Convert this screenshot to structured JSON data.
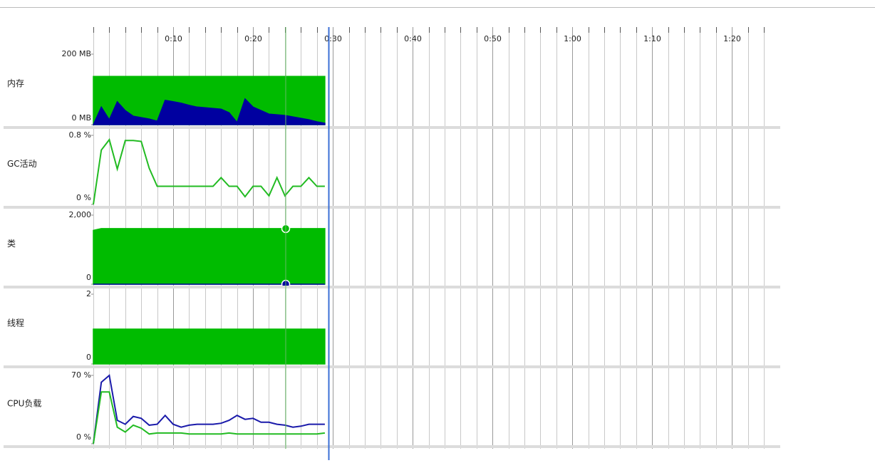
{
  "chart_data": [
    {
      "type": "area",
      "title": "内存",
      "x": [
        0,
        1,
        2,
        3,
        4,
        5,
        6,
        7,
        8,
        9,
        10,
        11,
        12,
        13,
        14,
        15,
        16,
        17,
        18,
        19,
        20,
        21,
        22,
        23,
        24,
        25,
        26,
        27,
        28,
        29
      ],
      "series": [
        {
          "color": "#00bb00",
          "values": [
            137,
            137,
            137,
            137,
            137,
            137,
            137,
            137,
            137,
            137,
            137,
            137,
            137,
            137,
            137,
            137,
            137,
            137,
            137,
            137,
            137,
            137,
            137,
            137,
            137,
            137,
            137,
            137,
            137,
            137
          ]
        },
        {
          "color": "#0000a0",
          "values": [
            0,
            50,
            14,
            65,
            40,
            24,
            20,
            16,
            10,
            69,
            65,
            61,
            55,
            50,
            48,
            46,
            44,
            34,
            6,
            73,
            50,
            40,
            30,
            28,
            26,
            22,
            18,
            14,
            8,
            4
          ]
        }
      ],
      "ylim": [
        0,
        200
      ],
      "yticks": [
        {
          "value": 0,
          "label": "0 MB"
        },
        {
          "value": 200,
          "label": "200 MB"
        }
      ]
    },
    {
      "type": "line",
      "title": "GC活动",
      "x": [
        0,
        1,
        2,
        3,
        4,
        5,
        6,
        7,
        8,
        9,
        10,
        11,
        12,
        13,
        14,
        15,
        16,
        17,
        18,
        19,
        20,
        21,
        22,
        23,
        24,
        25,
        26,
        27,
        28,
        29
      ],
      "series": [
        {
          "color": "#22bb22",
          "values": [
            0,
            0.63,
            0.75,
            0.41,
            0.74,
            0.74,
            0.73,
            0.42,
            0.21,
            0.21,
            0.21,
            0.21,
            0.21,
            0.21,
            0.21,
            0.21,
            0.31,
            0.21,
            0.21,
            0.09,
            0.21,
            0.21,
            0.1,
            0.31,
            0.1,
            0.21,
            0.21,
            0.31,
            0.21,
            0.21
          ]
        }
      ],
      "ylim": [
        0,
        0.8
      ],
      "yticks": [
        {
          "value": 0,
          "label": "0 %"
        },
        {
          "value": 0.8,
          "label": "0.8 %"
        }
      ]
    },
    {
      "type": "area",
      "title": "类",
      "x": [
        0,
        1,
        2,
        3,
        4,
        5,
        6,
        7,
        8,
        9,
        10,
        11,
        12,
        13,
        14,
        15,
        16,
        17,
        18,
        19,
        20,
        21,
        22,
        23,
        24,
        25,
        26,
        27,
        28,
        29
      ],
      "series": [
        {
          "color": "#00bb00",
          "values": [
            1560,
            1610,
            1610,
            1610,
            1610,
            1610,
            1610,
            1610,
            1610,
            1610,
            1610,
            1610,
            1610,
            1610,
            1610,
            1610,
            1610,
            1610,
            1610,
            1610,
            1610,
            1610,
            1610,
            1610,
            1610,
            1610,
            1610,
            1610,
            1610,
            1610
          ]
        },
        {
          "color": "#0000a0",
          "values": [
            0,
            0,
            0,
            0,
            0,
            0,
            0,
            0,
            0,
            0,
            0,
            0,
            0,
            0,
            0,
            0,
            0,
            0,
            0,
            0,
            0,
            0,
            0,
            0,
            0,
            0,
            0,
            0,
            0,
            0
          ]
        }
      ],
      "ylim": [
        0,
        2000
      ],
      "yticks": [
        0,
        {
          "value": 2000,
          "label": "2,000"
        }
      ]
    },
    {
      "type": "area",
      "title": "线程",
      "x": [
        0,
        1,
        2,
        3,
        4,
        5,
        6,
        7,
        8,
        9,
        10,
        11,
        12,
        13,
        14,
        15,
        16,
        17,
        18,
        19,
        20,
        21,
        22,
        23,
        24,
        25,
        26,
        27,
        28,
        29
      ],
      "series": [
        {
          "color": "#00bb00",
          "values": [
            1,
            1,
            1,
            1,
            1,
            1,
            1,
            1,
            1,
            1,
            1,
            1,
            1,
            1,
            1,
            1,
            1,
            1,
            1,
            1,
            1,
            1,
            1,
            1,
            1,
            1,
            1,
            1,
            1,
            1
          ]
        }
      ],
      "ylim": [
        0,
        2
      ],
      "yticks": [
        0,
        2
      ]
    },
    {
      "type": "line",
      "title": "CPU负载",
      "x": [
        0,
        1,
        2,
        3,
        4,
        5,
        6,
        7,
        8,
        9,
        10,
        11,
        12,
        13,
        14,
        15,
        16,
        17,
        18,
        19,
        20,
        21,
        22,
        23,
        24,
        25,
        26,
        27,
        28,
        29
      ],
      "series": [
        {
          "color": "#1a1aaa",
          "values": [
            0,
            63,
            70,
            24,
            20,
            28,
            26,
            19,
            20,
            29,
            20,
            17,
            19,
            20,
            20,
            20,
            21,
            24,
            29,
            25,
            26,
            22,
            22,
            20,
            19,
            17,
            18,
            20,
            20,
            20
          ]
        },
        {
          "color": "#22bb22",
          "values": [
            0,
            53,
            53,
            17,
            12,
            19,
            16,
            10,
            11,
            11,
            11,
            11,
            10,
            10,
            10,
            10,
            10,
            11,
            10,
            10,
            10,
            10,
            10,
            10,
            10,
            10,
            10,
            10,
            10,
            11
          ]
        }
      ],
      "ylim": [
        0,
        70
      ],
      "yticks": [
        {
          "value": 0,
          "label": "0 %"
        },
        {
          "value": 70,
          "label": "70 %"
        }
      ]
    }
  ],
  "time_axis": {
    "xlim": [
      0,
      85.6
    ],
    "xticks": [
      {
        "value": 10,
        "label": "0:10"
      },
      {
        "value": 20,
        "label": "0:20"
      },
      {
        "value": 30,
        "label": "0:30"
      },
      {
        "value": 40,
        "label": "0:40"
      },
      {
        "value": 50,
        "label": "0:50"
      },
      {
        "value": 60,
        "label": "1:00"
      },
      {
        "value": 70,
        "label": "1:10"
      },
      {
        "value": 80,
        "label": "1:20"
      }
    ],
    "minor_xticks": [
      0,
      2,
      4,
      6,
      8,
      12,
      14,
      16,
      18,
      22,
      24,
      26,
      28,
      32,
      34,
      36,
      38,
      42,
      44,
      46,
      48,
      52,
      54,
      56,
      58,
      62,
      64,
      66,
      68,
      72,
      74,
      76,
      78,
      82,
      84
    ],
    "selection_time": 24.1,
    "current_time": 29.5
  }
}
